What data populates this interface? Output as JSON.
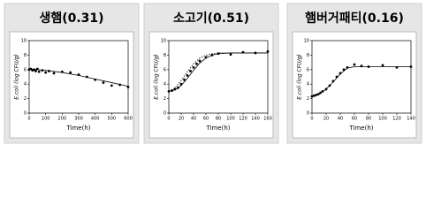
{
  "chart_data": [
    {
      "type": "scatter",
      "title": "생햄(0.31)",
      "xlabel": "Time(h)",
      "ylabel": "E.coli (log CFU/g)",
      "xlim": [
        0,
        600
      ],
      "xticks": [
        0,
        100,
        200,
        300,
        400,
        500,
        600
      ],
      "ylim": [
        0,
        10
      ],
      "yticks": [
        0,
        2,
        4,
        6,
        8,
        10
      ],
      "series": [
        {
          "type": "scatter",
          "color": "#000000",
          "x": [
            0,
            10,
            20,
            30,
            40,
            50,
            60,
            80,
            100,
            120,
            150,
            200,
            250,
            300,
            350,
            400,
            450,
            500,
            550,
            600
          ],
          "values": [
            6.0,
            6.1,
            5.9,
            6.0,
            5.8,
            6.1,
            5.7,
            5.9,
            5.6,
            5.8,
            5.5,
            5.7,
            5.6,
            5.3,
            5.0,
            4.6,
            4.2,
            3.8,
            3.9,
            3.6
          ]
        },
        {
          "type": "line",
          "color": "#000000",
          "x": [
            0,
            100,
            200,
            300,
            400,
            500,
            600
          ],
          "values": [
            6.1,
            5.9,
            5.6,
            5.2,
            4.7,
            4.2,
            3.7
          ]
        }
      ]
    },
    {
      "type": "scatter",
      "title": "소고기(0.51)",
      "xlabel": "Time(h)",
      "ylabel": "E.coli (log CFU/g)",
      "xlim": [
        0,
        160
      ],
      "xticks": [
        0,
        20,
        40,
        60,
        80,
        100,
        120,
        140,
        160
      ],
      "ylim": [
        0,
        10
      ],
      "yticks": [
        0,
        2,
        4,
        6,
        8,
        10
      ],
      "series": [
        {
          "type": "scatter",
          "color": "#000000",
          "x": [
            0,
            5,
            10,
            15,
            20,
            25,
            30,
            35,
            40,
            45,
            50,
            60,
            70,
            80,
            100,
            120,
            140,
            160
          ],
          "values": [
            3.0,
            3.1,
            3.3,
            3.5,
            4.0,
            4.6,
            5.2,
            5.8,
            6.3,
            6.8,
            7.2,
            7.7,
            8.0,
            8.2,
            8.1,
            8.4,
            8.3,
            8.5
          ]
        },
        {
          "type": "line",
          "color": "#000000",
          "x": [
            0,
            10,
            20,
            30,
            40,
            50,
            60,
            70,
            80,
            100,
            120,
            140,
            160
          ],
          "values": [
            3.0,
            3.2,
            3.8,
            4.8,
            5.9,
            6.9,
            7.6,
            8.0,
            8.2,
            8.3,
            8.3,
            8.3,
            8.3
          ]
        },
        {
          "type": "line",
          "dashed": true,
          "color": "#000000",
          "x": [
            0,
            10,
            20,
            30,
            40,
            50,
            60,
            70,
            80,
            100,
            120,
            140,
            160
          ],
          "values": [
            3.0,
            3.5,
            4.5,
            5.7,
            6.8,
            7.6,
            8.0,
            8.2,
            8.3,
            8.3,
            8.3,
            8.3,
            8.3
          ]
        }
      ]
    },
    {
      "type": "scatter",
      "title": "햄버거패티(0.16)",
      "xlabel": "Time(h)",
      "ylabel": "E.coli (log CFU/g)",
      "xlim": [
        0,
        140
      ],
      "xticks": [
        0,
        20,
        40,
        60,
        80,
        100,
        120,
        140
      ],
      "ylim": [
        0,
        10
      ],
      "yticks": [
        0,
        2,
        4,
        6,
        8,
        10
      ],
      "series": [
        {
          "type": "scatter",
          "color": "#000000",
          "x": [
            0,
            3,
            6,
            9,
            12,
            15,
            20,
            25,
            30,
            35,
            40,
            45,
            50,
            60,
            70,
            80,
            100,
            120,
            140
          ],
          "values": [
            2.3,
            2.4,
            2.5,
            2.6,
            2.8,
            3.0,
            3.3,
            3.8,
            4.4,
            5.0,
            5.5,
            6.0,
            6.3,
            6.7,
            6.5,
            6.4,
            6.6,
            6.3,
            6.4
          ]
        },
        {
          "type": "line",
          "color": "#000000",
          "x": [
            0,
            10,
            20,
            30,
            40,
            50,
            60,
            80,
            100,
            120,
            140
          ],
          "values": [
            2.3,
            2.6,
            3.3,
            4.3,
            5.4,
            6.2,
            6.4,
            6.4,
            6.4,
            6.4,
            6.4
          ]
        }
      ]
    }
  ]
}
